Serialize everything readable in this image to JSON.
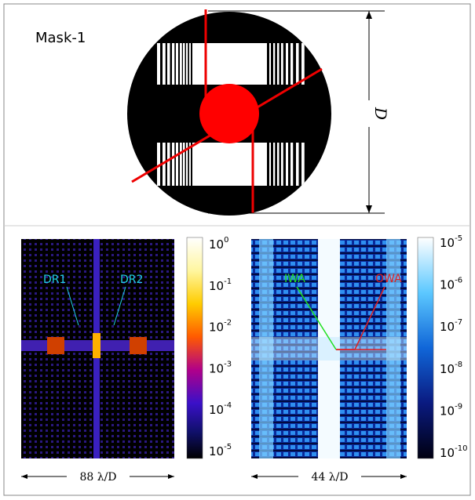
{
  "mask_label": "Mask-1",
  "diameter_label": "D",
  "left_panel": {
    "annotations": [
      "DR1",
      "DR2"
    ],
    "colorbar_ticks": [
      {
        "base": "10",
        "exponent": "0"
      },
      {
        "base": "10",
        "exponent": "-1"
      },
      {
        "base": "10",
        "exponent": "-2"
      },
      {
        "base": "10",
        "exponent": "-3"
      },
      {
        "base": "10",
        "exponent": "-4"
      },
      {
        "base": "10",
        "exponent": "-5"
      }
    ],
    "scale_label": "88 λ/D"
  },
  "right_panel": {
    "annotations": [
      "IWA",
      "OWA"
    ],
    "colorbar_ticks": [
      {
        "base": "10",
        "exponent": "-5"
      },
      {
        "base": "10",
        "exponent": "-6"
      },
      {
        "base": "10",
        "exponent": "-7"
      },
      {
        "base": "10",
        "exponent": "-8"
      },
      {
        "base": "10",
        "exponent": "-9"
      },
      {
        "base": "10",
        "exponent": "-10"
      }
    ],
    "scale_label": "44 λ/D"
  }
}
